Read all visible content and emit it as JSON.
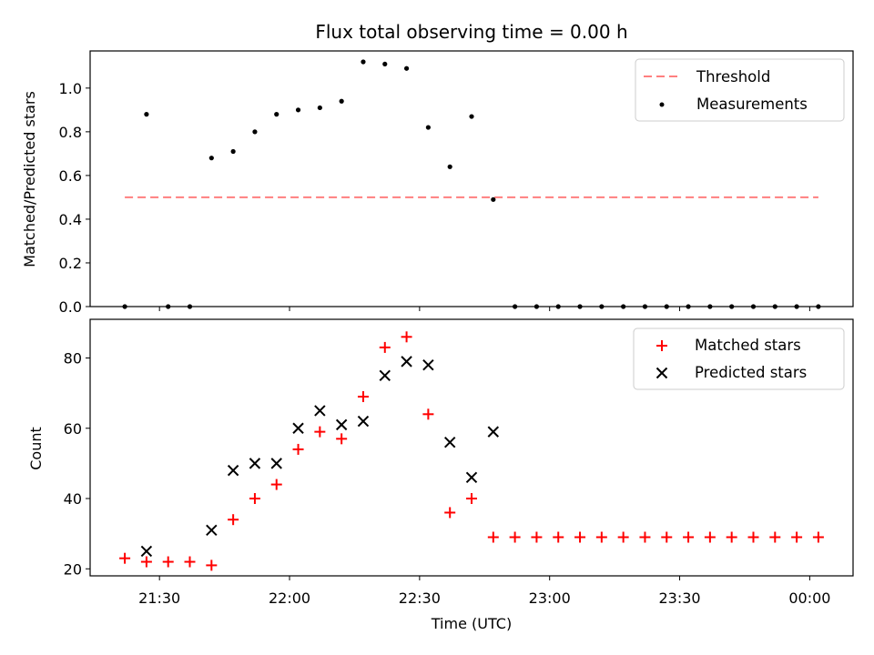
{
  "chart_data": [
    {
      "type": "scatter",
      "title": "Flux total observing time = 0.00 h",
      "xlabel": "",
      "ylabel": "Matched/Predicted stars",
      "ylim": [
        0,
        1.17
      ],
      "xlim": [
        "21:14",
        "00:10"
      ],
      "yticks": [
        "0.0",
        "0.2",
        "0.4",
        "0.6",
        "0.8",
        "1.0"
      ],
      "legend_position": "top-right",
      "threshold": {
        "name": "Threshold",
        "value": 0.5,
        "x": [
          "21:22",
          "00:02"
        ],
        "color": "#ff7f7f",
        "style": "dashed"
      },
      "series": [
        {
          "name": "Measurements",
          "color": "#000000",
          "marker": "dot",
          "x": [
            "21:22",
            "21:27",
            "21:32",
            "21:37",
            "21:42",
            "21:47",
            "21:52",
            "21:57",
            "22:02",
            "22:07",
            "22:12",
            "22:17",
            "22:22",
            "22:27",
            "22:32",
            "22:37",
            "22:42",
            "22:47",
            "22:52",
            "22:57",
            "23:02",
            "23:07",
            "23:12",
            "23:17",
            "23:22",
            "23:27",
            "23:32",
            "23:37",
            "23:42",
            "23:47",
            "23:52",
            "23:57",
            "00:02"
          ],
          "y": [
            0.0,
            0.88,
            0.0,
            0.0,
            0.68,
            0.71,
            0.8,
            0.88,
            0.9,
            0.91,
            0.94,
            1.12,
            1.11,
            1.09,
            0.82,
            0.64,
            0.87,
            0.49,
            0.0,
            0.0,
            0.0,
            0.0,
            0.0,
            0.0,
            0.0,
            0.0,
            0.0,
            0.0,
            0.0,
            0.0,
            0.0,
            0.0,
            0.0
          ]
        }
      ]
    },
    {
      "type": "scatter",
      "title": "",
      "xlabel": "Time (UTC)",
      "ylabel": "Count",
      "ylim": [
        18,
        91
      ],
      "xlim": [
        "21:14",
        "00:10"
      ],
      "yticks": [
        "20",
        "40",
        "60",
        "80"
      ],
      "xticks": [
        "21:30",
        "22:00",
        "22:30",
        "23:00",
        "23:30",
        "00:00"
      ],
      "legend_position": "top-right",
      "series": [
        {
          "name": "Matched stars",
          "color": "#ff0000",
          "marker": "plus",
          "x": [
            "21:22",
            "21:27",
            "21:32",
            "21:37",
            "21:42",
            "21:47",
            "21:52",
            "21:57",
            "22:02",
            "22:07",
            "22:12",
            "22:17",
            "22:22",
            "22:27",
            "22:32",
            "22:37",
            "22:42",
            "22:47",
            "22:52",
            "22:57",
            "23:02",
            "23:07",
            "23:12",
            "23:17",
            "23:22",
            "23:27",
            "23:32",
            "23:37",
            "23:42",
            "23:47",
            "23:52",
            "23:57",
            "00:02"
          ],
          "y": [
            23,
            22,
            22,
            22,
            21,
            34,
            40,
            44,
            54,
            59,
            57,
            69,
            83,
            86,
            64,
            36,
            40,
            29,
            29,
            29,
            29,
            29,
            29,
            29,
            29,
            29,
            29,
            29,
            29,
            29,
            29,
            29,
            29
          ]
        },
        {
          "name": "Predicted stars",
          "color": "#000000",
          "marker": "x",
          "x": [
            "21:27",
            "21:42",
            "21:47",
            "21:52",
            "21:57",
            "22:02",
            "22:07",
            "22:12",
            "22:17",
            "22:22",
            "22:27",
            "22:32",
            "22:37",
            "22:42",
            "22:47"
          ],
          "y": [
            25,
            31,
            48,
            50,
            50,
            60,
            65,
            61,
            62,
            75,
            79,
            78,
            56,
            46,
            59
          ]
        }
      ]
    }
  ]
}
